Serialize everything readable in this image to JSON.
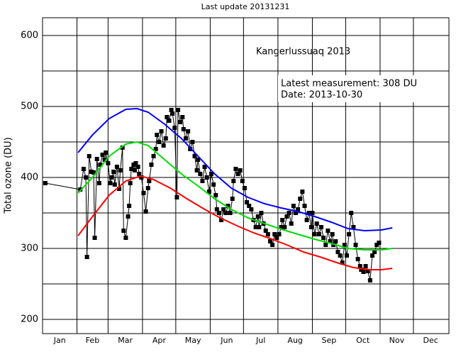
{
  "chart_data": {
    "type": "line",
    "title": "Last update 20131231",
    "ylabel": "Total ozone (DU)",
    "annotations": [
      "Kangerlussuaq 2013",
      "Latest measurement: 308 DU",
      "Date: 2013-10-30"
    ],
    "xlim": [
      0,
      366
    ],
    "ylim": [
      180,
      625
    ],
    "xticks": [
      {
        "value": 15.5,
        "label": "Jan"
      },
      {
        "value": 45,
        "label": "Feb"
      },
      {
        "value": 74.5,
        "label": "Mar"
      },
      {
        "value": 105,
        "label": "Apr"
      },
      {
        "value": 135.5,
        "label": "May"
      },
      {
        "value": 166,
        "label": "Jun"
      },
      {
        "value": 196.5,
        "label": "Jul"
      },
      {
        "value": 227.5,
        "label": "Aug"
      },
      {
        "value": 258,
        "label": "Sep"
      },
      {
        "value": 288.5,
        "label": "Oct"
      },
      {
        "value": 319,
        "label": "Nov"
      },
      {
        "value": 349.5,
        "label": "Dec"
      }
    ],
    "xgrid": [
      31,
      59,
      90,
      120,
      151,
      181,
      212,
      243,
      273,
      304,
      334
    ],
    "yticks": [
      200,
      300,
      400,
      500,
      600
    ],
    "ygrid_minor": [
      250,
      350,
      450,
      550
    ],
    "grid": true,
    "series": [
      {
        "color": "#000000",
        "marker": "square",
        "x": [
          2.5,
          34,
          37,
          39,
          40,
          42,
          44,
          46,
          47,
          49,
          51,
          52,
          54,
          56,
          57,
          59,
          61,
          62,
          64,
          65,
          67,
          69,
          70,
          72,
          73,
          75,
          77,
          78,
          79,
          80,
          82,
          83,
          84,
          86,
          87,
          89,
          91,
          93,
          95,
          96,
          98,
          100,
          102,
          103,
          105,
          107,
          109,
          111,
          112,
          114,
          116,
          117,
          119,
          121,
          122,
          124,
          126,
          127,
          129,
          131,
          133,
          135,
          137,
          139,
          140,
          142,
          144,
          146,
          148,
          150,
          152,
          154,
          156,
          157,
          159,
          161,
          163,
          165,
          167,
          169,
          171,
          172,
          174,
          176,
          178,
          180,
          182,
          184,
          186,
          188,
          190,
          192,
          194,
          195,
          197,
          199,
          201,
          203,
          205,
          207,
          209,
          211,
          213,
          215,
          216,
          218,
          220,
          222,
          224,
          226,
          228,
          230,
          232,
          234,
          236,
          238,
          240,
          242,
          243,
          245,
          247,
          249,
          251,
          253,
          255,
          257,
          259,
          261,
          262,
          264,
          266,
          268,
          270,
          272,
          274,
          276,
          278,
          280,
          282,
          284,
          286,
          287,
          289,
          291,
          293,
          295,
          297,
          299,
          301,
          303
        ],
        "values": [
          392,
          383,
          412,
          400,
          288,
          430,
          408,
          407,
          315,
          426,
          392,
          418,
          432,
          425,
          435,
          420,
          392,
          400,
          408,
          390,
          415,
          384,
          410,
          442,
          325,
          315,
          345,
          360,
          392,
          412,
          418,
          410,
          420,
          415,
          405,
          400,
          378,
          352,
          385,
          395,
          418,
          430,
          440,
          460,
          450,
          465,
          445,
          455,
          485,
          480,
          495,
          490,
          470,
          372,
          495,
          478,
          485,
          468,
          455,
          465,
          440,
          450,
          430,
          410,
          425,
          405,
          395,
          415,
          400,
          380,
          405,
          390,
          375,
          355,
          350,
          340,
          355,
          350,
          360,
          350,
          370,
          395,
          412,
          405,
          410,
          395,
          385,
          365,
          360,
          355,
          340,
          330,
          345,
          330,
          350,
          335,
          325,
          320,
          310,
          305,
          320,
          315,
          320,
          330,
          340,
          330,
          345,
          350,
          335,
          360,
          350,
          355,
          370,
          380,
          360,
          340,
          350,
          330,
          350,
          320,
          335,
          320,
          330,
          315,
          305,
          325,
          310,
          320,
          305,
          310,
          295,
          290,
          280,
          305,
          290,
          320,
          350,
          330,
          305,
          285,
          275,
          270,
          267,
          275,
          268,
          255,
          290,
          295,
          305,
          308
        ]
      },
      {
        "color": "#0000ff",
        "marker": "none",
        "x": [
          32,
          45,
          60,
          75,
          85,
          95,
          110,
          125,
          140,
          155,
          170,
          185,
          200,
          215,
          230,
          245,
          260,
          275,
          290,
          305,
          315
        ],
        "values": [
          435,
          460,
          483,
          496,
          497,
          492,
          475,
          455,
          430,
          405,
          385,
          372,
          363,
          357,
          352,
          345,
          337,
          328,
          325,
          326,
          329
        ]
      },
      {
        "color": "#00dd00",
        "marker": "none",
        "x": [
          32,
          45,
          60,
          75,
          85,
          95,
          110,
          125,
          140,
          155,
          170,
          185,
          200,
          215,
          230,
          245,
          260,
          275,
          290,
          305,
          315
        ],
        "values": [
          378,
          400,
          430,
          447,
          450,
          445,
          425,
          405,
          388,
          370,
          355,
          343,
          335,
          327,
          320,
          313,
          307,
          300,
          298,
          298,
          300
        ]
      },
      {
        "color": "#ff0000",
        "marker": "none",
        "x": [
          32,
          45,
          60,
          75,
          88,
          100,
          115,
          130,
          145,
          160,
          175,
          190,
          205,
          220,
          235,
          250,
          265,
          280,
          295,
          305,
          315
        ],
        "values": [
          318,
          345,
          375,
          395,
          402,
          397,
          385,
          370,
          356,
          343,
          332,
          322,
          314,
          305,
          295,
          288,
          280,
          273,
          270,
          270,
          272
        ]
      }
    ]
  }
}
